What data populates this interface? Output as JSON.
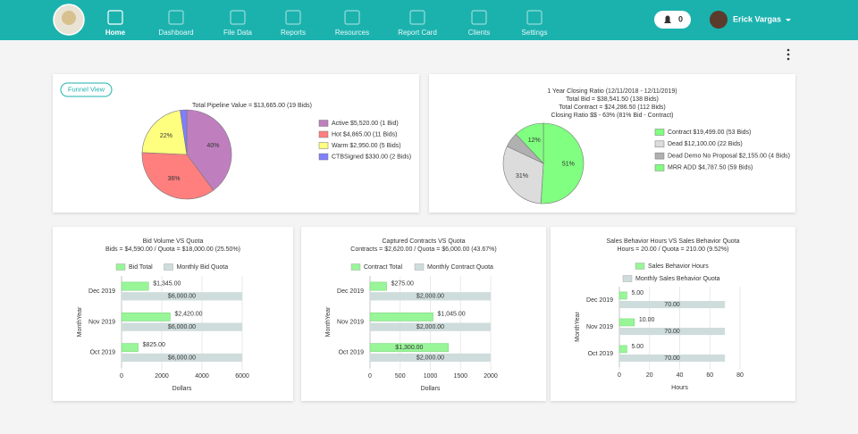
{
  "nav": {
    "items": [
      "Home",
      "Dashboard",
      "File Data",
      "Reports",
      "Resources",
      "Report Card",
      "Clients",
      "Settings"
    ],
    "active": 0,
    "notifications": 0,
    "user": "Erick Vargas"
  },
  "chart_data": [
    {
      "type": "pie",
      "button": "Funnel View",
      "title": "Total Pipeline Value = $13,665.00 (19 Bids)",
      "categories": [
        "Active $5,520.00 (1 Bid)",
        "Hot $4,865.00 (11 Bids)",
        "Warm $2,950.00 (5 Bids)",
        "CTBSigned $330.00 (2 Bids)"
      ],
      "values": [
        40,
        36,
        22,
        2.4
      ],
      "value_labels": [
        "40%",
        "36%",
        "22%",
        null
      ],
      "colors": [
        "#bf7fbf",
        "#ff7f7f",
        "#ffff7f",
        "#7f7fff"
      ],
      "legend": "right"
    },
    {
      "type": "pie",
      "title": "1 Year Closing Ratio (12/11/2018 - 12/11/2019)",
      "subtitle": [
        "Total Bid = $38,541.50 (138 Bids)",
        "Total Contract = $24,286.50 (112 Bids)",
        "Closing Ratio $$ - 63% (81% Bid - Contract)"
      ],
      "categories": [
        "Contract $19,499.00 (53 Bids)",
        "Dead $12,100.00 (22 Bids)",
        "Dead Demo No Proposal $2,155.00 (4 Bids)",
        "MRR ADD $4,787.50 (59 Bids)"
      ],
      "values": [
        51,
        31,
        6,
        12
      ],
      "value_labels": [
        "51%",
        "31%",
        null,
        "12%"
      ],
      "colors": [
        "#80ff80",
        "#dcdcdc",
        "#b0b0b0",
        "#80ff80"
      ],
      "legend": "right"
    },
    {
      "type": "hbar",
      "title": "Bid Volume VS Quota",
      "subtitle": "Bids = $4,590.00 / Quota = $18,000.00 (25.50%)",
      "categories": [
        "Dec 2019",
        "Nov 2019",
        "Oct 2019"
      ],
      "series": [
        {
          "name": "Bid Total",
          "color": "#98f598",
          "values": [
            1345,
            2420,
            825
          ],
          "value_labels": [
            "$1,345.00",
            "$2,420.00",
            "$825.00"
          ]
        },
        {
          "name": "Monthly Bid Quota",
          "color": "#cfdcdc",
          "values": [
            6000,
            6000,
            6000
          ],
          "value_labels": [
            "$6,000.00",
            "$6,000.00",
            "$6,000.00"
          ]
        }
      ],
      "xlim": [
        0,
        6000
      ],
      "xticks": [
        0,
        2000,
        4000,
        6000
      ],
      "xlabel": "Dollars",
      "ylabel": "MonthYear",
      "legend": "top",
      "grid": true
    },
    {
      "type": "hbar",
      "title": "Captured Contracts VS Quota",
      "subtitle": "Contracts = $2,620.00 / Quota = $6,000.00 (43.67%)",
      "categories": [
        "Dec 2019",
        "Nov 2019",
        "Oct 2019"
      ],
      "series": [
        {
          "name": "Contract Total",
          "color": "#98f598",
          "values": [
            275,
            1045,
            1300
          ],
          "value_labels": [
            "$275.00",
            "$1,045.00",
            "$1,300.00"
          ]
        },
        {
          "name": "Monthly Contract Quota",
          "color": "#cfdcdc",
          "values": [
            2000,
            2000,
            2000
          ],
          "value_labels": [
            "$2,000.00",
            "$2,000.00",
            "$2,000.00"
          ]
        }
      ],
      "xlim": [
        0,
        2000
      ],
      "xticks": [
        0,
        500,
        1000,
        1500,
        2000
      ],
      "xlabel": "Dollars",
      "ylabel": "MonthYear",
      "legend": "top",
      "grid": true
    },
    {
      "type": "hbar",
      "title": "Sales Behavior Hours VS Sales Behavior Quota",
      "subtitle": "Hours = 20.00 / Quota = 210.00 (9.52%)",
      "categories": [
        "Dec 2019",
        "Nov 2019",
        "Oct 2019"
      ],
      "series": [
        {
          "name": "Sales Behavior Hours",
          "color": "#98f598",
          "values": [
            5,
            10,
            5
          ],
          "value_labels": [
            "5.00",
            "10.00",
            "5.00"
          ]
        },
        {
          "name": "Monthly Sales Behavior Quota",
          "color": "#cfdcdc",
          "values": [
            70,
            70,
            70
          ],
          "value_labels": [
            "70.00",
            "70.00",
            "70.00"
          ]
        }
      ],
      "xlim": [
        0,
        80
      ],
      "xticks": [
        0,
        20,
        40,
        60,
        80
      ],
      "xlabel": "Hours",
      "ylabel": "MonthYear",
      "legend": "top",
      "grid": true
    }
  ]
}
